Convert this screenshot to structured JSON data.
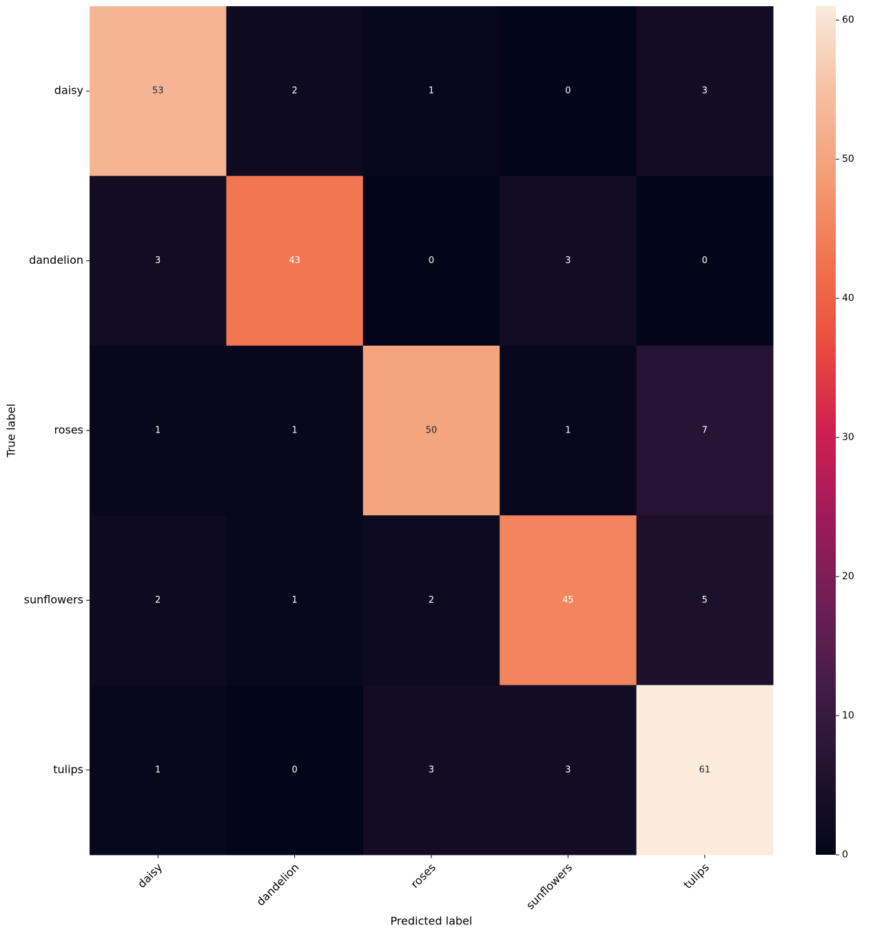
{
  "chart_data": {
    "type": "heatmap",
    "x_categories": [
      "daisy",
      "dandelion",
      "roses",
      "sunflowers",
      "tulips"
    ],
    "y_categories": [
      "daisy",
      "dandelion",
      "roses",
      "sunflowers",
      "tulips"
    ],
    "values": [
      [
        53,
        2,
        1,
        0,
        3
      ],
      [
        3,
        43,
        0,
        3,
        0
      ],
      [
        1,
        1,
        50,
        1,
        7
      ],
      [
        2,
        1,
        2,
        45,
        5
      ],
      [
        1,
        0,
        3,
        3,
        61
      ]
    ],
    "xlabel": "Predicted label",
    "ylabel": "True label",
    "colormap": "rocket",
    "clim": [
      0,
      61
    ],
    "cticks": [
      0,
      10,
      20,
      30,
      40,
      50,
      60
    ]
  }
}
